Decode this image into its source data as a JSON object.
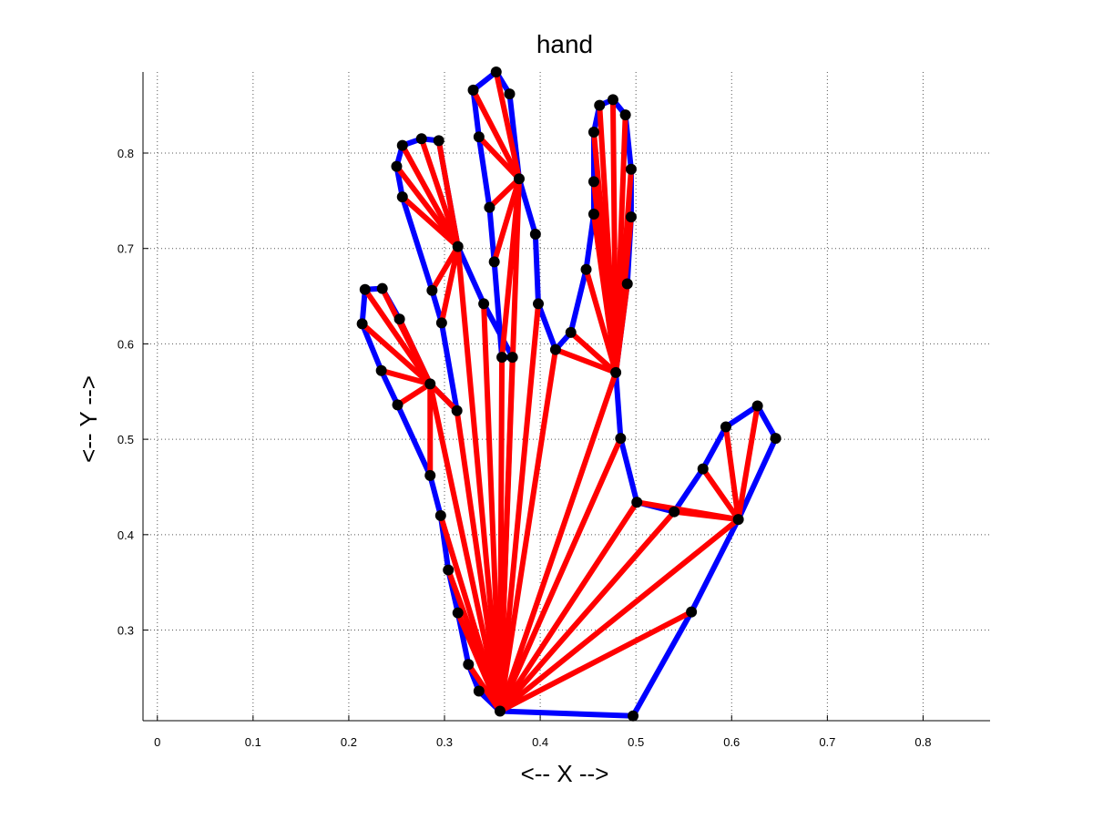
{
  "chart_data": {
    "type": "line",
    "title": "hand",
    "xlabel": "<-- X -->",
    "ylabel": "<-- Y -->",
    "xlim": [
      -0.015,
      0.87
    ],
    "ylim": [
      0.205,
      0.885
    ],
    "xticks": [
      0,
      0.1,
      0.2,
      0.3,
      0.4,
      0.5,
      0.6,
      0.7,
      0.8
    ],
    "xtick_labels": [
      "0",
      "0.1",
      "0.2",
      "0.3",
      "0.4",
      "0.5",
      "0.6",
      "0.7",
      "0.8"
    ],
    "yticks": [
      0.3,
      0.4,
      0.5,
      0.6,
      0.7,
      0.8
    ],
    "ytick_labels": [
      "0.3",
      "0.4",
      "0.5",
      "0.6",
      "0.7",
      "0.8"
    ],
    "grid": true,
    "colors": {
      "outline": "#0000ff",
      "triangulation": "#ff0000",
      "points": "#000000"
    },
    "series": [
      {
        "type": "outline",
        "points": [
          [
            0.358,
            0.215
          ],
          [
            0.497,
            0.21
          ],
          [
            0.558,
            0.319
          ],
          [
            0.607,
            0.416
          ],
          [
            0.646,
            0.501
          ],
          [
            0.627,
            0.535
          ],
          [
            0.594,
            0.513
          ],
          [
            0.57,
            0.469
          ],
          [
            0.54,
            0.424
          ],
          [
            0.501,
            0.434
          ],
          [
            0.484,
            0.501
          ],
          [
            0.479,
            0.57
          ],
          [
            0.491,
            0.663
          ],
          [
            0.495,
            0.733
          ],
          [
            0.495,
            0.783
          ],
          [
            0.489,
            0.84
          ],
          [
            0.476,
            0.856
          ],
          [
            0.462,
            0.85
          ],
          [
            0.456,
            0.822
          ],
          [
            0.456,
            0.77
          ],
          [
            0.456,
            0.736
          ],
          [
            0.448,
            0.678
          ],
          [
            0.432,
            0.612
          ],
          [
            0.416,
            0.594
          ],
          [
            0.398,
            0.642
          ],
          [
            0.395,
            0.715
          ],
          [
            0.378,
            0.773
          ],
          [
            0.368,
            0.862
          ],
          [
            0.354,
            0.885
          ],
          [
            0.33,
            0.866
          ],
          [
            0.336,
            0.817
          ],
          [
            0.347,
            0.743
          ],
          [
            0.352,
            0.686
          ],
          [
            0.36,
            0.586
          ],
          [
            0.371,
            0.586
          ],
          [
            0.341,
            0.642
          ],
          [
            0.314,
            0.702
          ],
          [
            0.294,
            0.813
          ],
          [
            0.276,
            0.815
          ],
          [
            0.256,
            0.808
          ],
          [
            0.25,
            0.786
          ],
          [
            0.256,
            0.754
          ],
          [
            0.287,
            0.656
          ],
          [
            0.297,
            0.622
          ],
          [
            0.313,
            0.53
          ],
          [
            0.285,
            0.558
          ],
          [
            0.253,
            0.626
          ],
          [
            0.235,
            0.658
          ],
          [
            0.217,
            0.657
          ],
          [
            0.214,
            0.621
          ],
          [
            0.234,
            0.572
          ],
          [
            0.251,
            0.536
          ],
          [
            0.285,
            0.462
          ],
          [
            0.296,
            0.42
          ],
          [
            0.304,
            0.363
          ],
          [
            0.314,
            0.318
          ],
          [
            0.325,
            0.264
          ],
          [
            0.336,
            0.236
          ],
          [
            0.358,
            0.215
          ]
        ]
      },
      {
        "type": "triangulation",
        "segments": [
          [
            [
              0.358,
              0.215
            ],
            [
              0.558,
              0.319
            ]
          ],
          [
            [
              0.358,
              0.215
            ],
            [
              0.607,
              0.416
            ]
          ],
          [
            [
              0.358,
              0.215
            ],
            [
              0.54,
              0.424
            ]
          ],
          [
            [
              0.358,
              0.215
            ],
            [
              0.501,
              0.434
            ]
          ],
          [
            [
              0.358,
              0.215
            ],
            [
              0.484,
              0.501
            ]
          ],
          [
            [
              0.358,
              0.215
            ],
            [
              0.479,
              0.57
            ]
          ],
          [
            [
              0.358,
              0.215
            ],
            [
              0.416,
              0.594
            ]
          ],
          [
            [
              0.358,
              0.215
            ],
            [
              0.398,
              0.642
            ]
          ],
          [
            [
              0.358,
              0.215
            ],
            [
              0.378,
              0.773
            ]
          ],
          [
            [
              0.358,
              0.215
            ],
            [
              0.371,
              0.586
            ]
          ],
          [
            [
              0.358,
              0.215
            ],
            [
              0.36,
              0.586
            ]
          ],
          [
            [
              0.358,
              0.215
            ],
            [
              0.341,
              0.642
            ]
          ],
          [
            [
              0.358,
              0.215
            ],
            [
              0.314,
              0.702
            ]
          ],
          [
            [
              0.358,
              0.215
            ],
            [
              0.313,
              0.53
            ]
          ],
          [
            [
              0.358,
              0.215
            ],
            [
              0.285,
              0.558
            ]
          ],
          [
            [
              0.358,
              0.215
            ],
            [
              0.296,
              0.42
            ]
          ],
          [
            [
              0.358,
              0.215
            ],
            [
              0.304,
              0.363
            ]
          ],
          [
            [
              0.358,
              0.215
            ],
            [
              0.314,
              0.318
            ]
          ],
          [
            [
              0.358,
              0.215
            ],
            [
              0.325,
              0.264
            ]
          ],
          [
            [
              0.607,
              0.416
            ],
            [
              0.54,
              0.424
            ]
          ],
          [
            [
              0.607,
              0.416
            ],
            [
              0.501,
              0.434
            ]
          ],
          [
            [
              0.607,
              0.416
            ],
            [
              0.57,
              0.469
            ]
          ],
          [
            [
              0.607,
              0.416
            ],
            [
              0.594,
              0.513
            ]
          ],
          [
            [
              0.607,
              0.416
            ],
            [
              0.627,
              0.535
            ]
          ],
          [
            [
              0.479,
              0.57
            ],
            [
              0.416,
              0.594
            ]
          ],
          [
            [
              0.479,
              0.57
            ],
            [
              0.432,
              0.612
            ]
          ],
          [
            [
              0.479,
              0.57
            ],
            [
              0.448,
              0.678
            ]
          ],
          [
            [
              0.479,
              0.57
            ],
            [
              0.456,
              0.736
            ]
          ],
          [
            [
              0.479,
              0.57
            ],
            [
              0.456,
              0.77
            ]
          ],
          [
            [
              0.479,
              0.57
            ],
            [
              0.456,
              0.822
            ]
          ],
          [
            [
              0.479,
              0.57
            ],
            [
              0.462,
              0.85
            ]
          ],
          [
            [
              0.479,
              0.57
            ],
            [
              0.476,
              0.856
            ]
          ],
          [
            [
              0.479,
              0.57
            ],
            [
              0.489,
              0.84
            ]
          ],
          [
            [
              0.479,
              0.57
            ],
            [
              0.495,
              0.783
            ]
          ],
          [
            [
              0.479,
              0.57
            ],
            [
              0.495,
              0.733
            ]
          ],
          [
            [
              0.479,
              0.57
            ],
            [
              0.491,
              0.663
            ]
          ],
          [
            [
              0.378,
              0.773
            ],
            [
              0.354,
              0.885
            ]
          ],
          [
            [
              0.378,
              0.773
            ],
            [
              0.33,
              0.866
            ]
          ],
          [
            [
              0.378,
              0.773
            ],
            [
              0.336,
              0.817
            ]
          ],
          [
            [
              0.378,
              0.773
            ],
            [
              0.347,
              0.743
            ]
          ],
          [
            [
              0.378,
              0.773
            ],
            [
              0.352,
              0.686
            ]
          ],
          [
            [
              0.378,
              0.773
            ],
            [
              0.36,
              0.586
            ]
          ],
          [
            [
              0.314,
              0.702
            ],
            [
              0.294,
              0.813
            ]
          ],
          [
            [
              0.314,
              0.702
            ],
            [
              0.276,
              0.815
            ]
          ],
          [
            [
              0.314,
              0.702
            ],
            [
              0.256,
              0.808
            ]
          ],
          [
            [
              0.314,
              0.702
            ],
            [
              0.25,
              0.786
            ]
          ],
          [
            [
              0.314,
              0.702
            ],
            [
              0.256,
              0.754
            ]
          ],
          [
            [
              0.314,
              0.702
            ],
            [
              0.287,
              0.656
            ]
          ],
          [
            [
              0.314,
              0.702
            ],
            [
              0.297,
              0.622
            ]
          ],
          [
            [
              0.285,
              0.558
            ],
            [
              0.313,
              0.53
            ]
          ],
          [
            [
              0.285,
              0.558
            ],
            [
              0.217,
              0.657
            ]
          ],
          [
            [
              0.285,
              0.558
            ],
            [
              0.235,
              0.658
            ]
          ],
          [
            [
              0.285,
              0.558
            ],
            [
              0.253,
              0.626
            ]
          ],
          [
            [
              0.285,
              0.558
            ],
            [
              0.214,
              0.621
            ]
          ],
          [
            [
              0.285,
              0.558
            ],
            [
              0.234,
              0.572
            ]
          ],
          [
            [
              0.285,
              0.558
            ],
            [
              0.251,
              0.536
            ]
          ],
          [
            [
              0.285,
              0.558
            ],
            [
              0.285,
              0.462
            ]
          ]
        ]
      }
    ]
  }
}
